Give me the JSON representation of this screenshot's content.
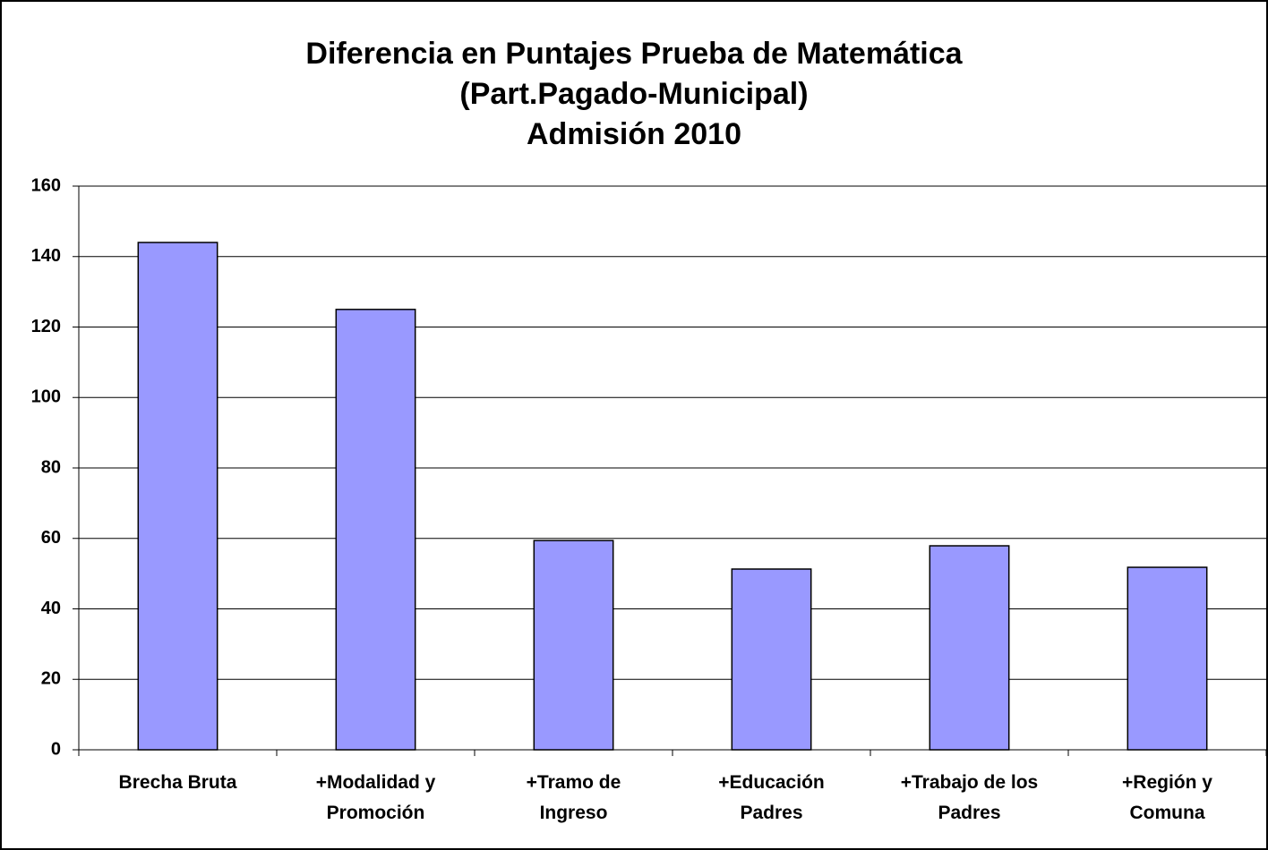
{
  "chart_data": {
    "type": "bar",
    "title": "Diferencia en Puntajes Prueba de Matemática\n(Part.Pagado-Municipal)\nAdmisión 2010",
    "categories": [
      "Brecha Bruta",
      "+Modalidad y\nPromoción",
      "+Tramo de\nIngreso",
      "+Educación\nPadres",
      "+Trabajo de los\nPadres",
      "+Región y\nComuna"
    ],
    "values": [
      144,
      125,
      59.4,
      51.3,
      57.9,
      51.8
    ],
    "color": "#9999ff",
    "ylim": [
      0,
      160
    ],
    "yticks": [
      0,
      20,
      40,
      60,
      80,
      100,
      120,
      140,
      160
    ],
    "grid": true
  }
}
